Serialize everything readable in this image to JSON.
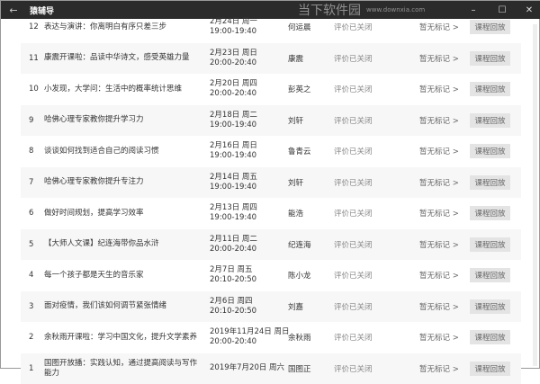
{
  "window": {
    "title": "猿辅导",
    "back_icon": "arrow-left-icon",
    "minimize": "–",
    "maximize": "☐",
    "close": "✕"
  },
  "lessons": [
    {
      "num": "12",
      "name": "表达与演讲：你离明白有序只差三步",
      "date": "2月24日 周一",
      "time": "19:00-19:40",
      "teacher": "何运晨",
      "eval": "评价已关闭",
      "mark": "暂无标记 >",
      "button": "课程回放"
    },
    {
      "num": "11",
      "name": "康震开课啦：品读中华诗文，感受英雄力量",
      "date": "2月23日 周日",
      "time": "20:00-20:40",
      "teacher": "康震",
      "eval": "评价已关闭",
      "mark": "暂无标记 >",
      "button": "课程回放"
    },
    {
      "num": "10",
      "name": "小发现，大学问：生活中的概率统计思维",
      "date": "2月20日 周四",
      "time": "20:00-20:40",
      "teacher": "彭英之",
      "eval": "评价已关闭",
      "mark": "暂无标记 >",
      "button": "课程回放"
    },
    {
      "num": "9",
      "name": "哈佛心理专家教你提升学习力",
      "date": "2月18日 周二",
      "time": "19:00-19:40",
      "teacher": "刘轩",
      "eval": "评价已关闭",
      "mark": "暂无标记 >",
      "button": "课程回放"
    },
    {
      "num": "8",
      "name": "谈谈如何找到适合自己的阅读习惯",
      "date": "2月16日 周日",
      "time": "19:00-19:40",
      "teacher": "鲁青云",
      "eval": "评价已关闭",
      "mark": "暂无标记 >",
      "button": "课程回放"
    },
    {
      "num": "7",
      "name": "哈佛心理专家教你提升专注力",
      "date": "2月14日 周五",
      "time": "19:00-19:40",
      "teacher": "刘轩",
      "eval": "评价已关闭",
      "mark": "暂无标记 >",
      "button": "课程回放"
    },
    {
      "num": "6",
      "name": "做好时间规划，提高学习效率",
      "date": "2月13日 周四",
      "time": "19:00-19:40",
      "teacher": "能浩",
      "eval": "评价已关闭",
      "mark": "暂无标记 >",
      "button": "课程回放"
    },
    {
      "num": "5",
      "name": "【大师人文课】纪连海带你品水浒",
      "date": "2月11日 周二",
      "time": "20:00-20:40",
      "teacher": "纪连海",
      "eval": "评价已关闭",
      "mark": "暂无标记 >",
      "button": "课程回放"
    },
    {
      "num": "4",
      "name": "每一个孩子都是天生的音乐家",
      "date": "2月7日 周五",
      "time": "20:10-20:50",
      "teacher": "陈小龙",
      "eval": "评价已关闭",
      "mark": "暂无标记 >",
      "button": "课程回放"
    },
    {
      "num": "3",
      "name": "面对疫情，我们该如何调节紧张情绪",
      "date": "2月6日 周四",
      "time": "20:10-20:50",
      "teacher": "刘嘉",
      "eval": "评价已关闭",
      "mark": "暂无标记 >",
      "button": "课程回放"
    },
    {
      "num": "2",
      "name": "余秋雨开课啦：学习中国文化，提升文学素养",
      "date": "2019年11月24日 周日",
      "time": "20:00-20:40",
      "teacher": "余秋雨",
      "eval": "评价已关闭",
      "mark": "暂无标记 >",
      "button": "课程回放"
    },
    {
      "num": "1",
      "name": "国图开放播：实践认知，通过提高阅读与写作能力",
      "date": "2019年7月20日 周六",
      "time": "",
      "teacher": "国图正",
      "eval": "评价已关闭",
      "mark": "暂无标记 >",
      "button": "课程回放"
    }
  ],
  "watermark": {
    "name": "当下软件园",
    "url": "www.downxia.com"
  }
}
